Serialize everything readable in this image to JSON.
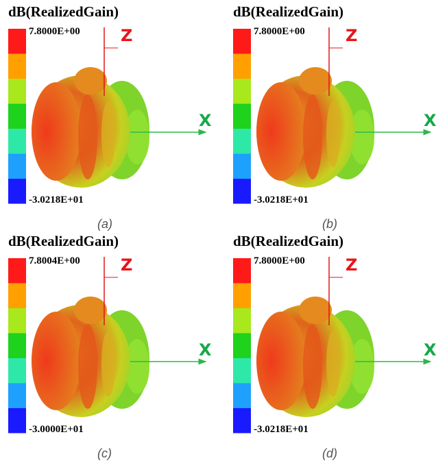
{
  "panels": [
    {
      "title": "dB(RealizedGain)",
      "max": "7.8000E+00",
      "min": "-3.0218E+01",
      "z": "Z",
      "x": "X",
      "caption": "(a)"
    },
    {
      "title": "dB(RealizedGain)",
      "max": "7.8000E+00",
      "min": "-3.0218E+01",
      "z": "Z",
      "x": "X",
      "caption": "(b)"
    },
    {
      "title": "dB(RealizedGain)",
      "max": "7.8004E+00",
      "min": "-3.0000E+01",
      "z": "Z",
      "x": "X",
      "caption": "(c)"
    },
    {
      "title": "dB(RealizedGain)",
      "max": "7.8000E+00",
      "min": "-3.0218E+01",
      "z": "Z",
      "x": "X",
      "caption": "(d)"
    }
  ]
}
